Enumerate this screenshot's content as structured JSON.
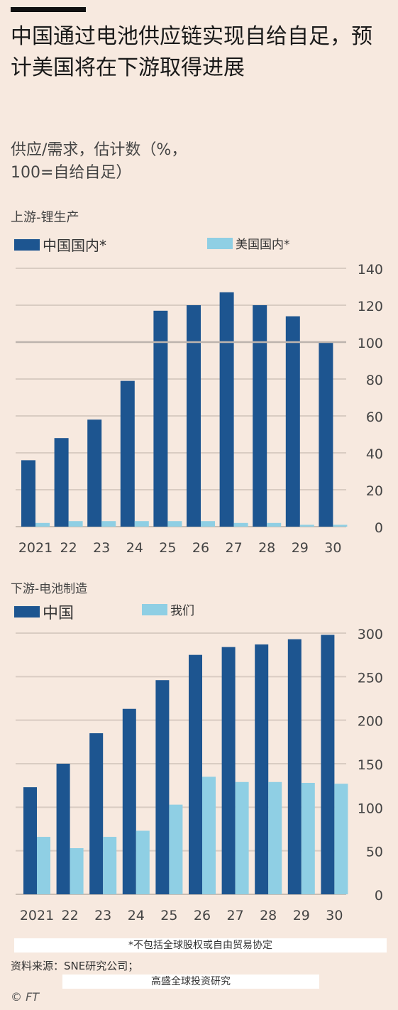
{
  "title": "中国通过电池供应链实现自给自足，预计美国将在下游取得进展",
  "subtitle_line1": "供应/需求，估计数（%，",
  "subtitle_line2": "100=自给自足）",
  "colors": {
    "dark": "#1d5590",
    "light": "#8fcfe4",
    "grid": "#d9ccc2",
    "ref": "#bdb4ae",
    "bg": "#f7e9df"
  },
  "chart_data": [
    {
      "type": "bar",
      "title": "上游-锂生产",
      "categories": [
        "2021",
        "22",
        "23",
        "24",
        "25",
        "26",
        "27",
        "28",
        "29",
        "30"
      ],
      "series": [
        {
          "name": "中国国内*",
          "values": [
            36,
            48,
            58,
            79,
            117,
            120,
            127,
            120,
            114,
            100
          ]
        },
        {
          "name": "美国国内*",
          "values": [
            2,
            3,
            3,
            3,
            3,
            3,
            2,
            2,
            1,
            1
          ]
        }
      ],
      "ylim": [
        0,
        140
      ],
      "yticks": [
        0,
        20,
        40,
        60,
        80,
        100,
        120,
        140
      ],
      "reference_line": 100,
      "grid": true,
      "legend": "top-left"
    },
    {
      "type": "bar",
      "title": "下游-电池制造",
      "categories": [
        "2021",
        "22",
        "23",
        "24",
        "25",
        "26",
        "27",
        "28",
        "29",
        "30"
      ],
      "series": [
        {
          "name": "中国",
          "values": [
            123,
            150,
            185,
            213,
            246,
            275,
            284,
            287,
            293,
            298
          ]
        },
        {
          "name": "我们",
          "values": [
            66,
            53,
            66,
            73,
            103,
            135,
            129,
            129,
            128,
            127
          ]
        }
      ],
      "ylim": [
        0,
        300
      ],
      "yticks": [
        0,
        50,
        100,
        150,
        200,
        250,
        300
      ],
      "grid": true,
      "legend": "top-left"
    }
  ],
  "footnote": "*不包括全球股权或自由贸易协定",
  "source_line1": "资料来源：SNE研究公司；",
  "source_line2": "高盛全球投资研究",
  "credit": "© FT"
}
